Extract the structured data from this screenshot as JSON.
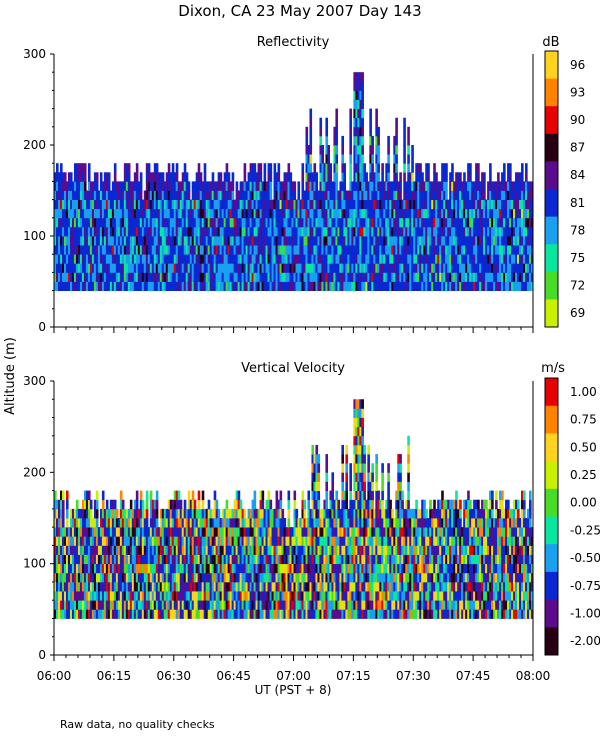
{
  "figure": {
    "title": "Dixon, CA 23 May 2007  Day 143",
    "ylabel": "Altitude (m)",
    "xlabel": "UT  (PST + 8)",
    "xticks": [
      "06:00",
      "06:15",
      "06:30",
      "06:45",
      "07:00",
      "07:15",
      "07:30",
      "07:45",
      "08:00"
    ],
    "footnote": "Raw data, no quality checks"
  },
  "chart_data": [
    {
      "type": "heatmap",
      "title": "Reflectivity",
      "colorbar_unit": "dB",
      "colorbar_ticks": [
        "96",
        "93",
        "90",
        "87",
        "84",
        "81",
        "78",
        "75",
        "72",
        "69"
      ],
      "colorbar_colors": [
        "#ffd21e",
        "#ff8200",
        "#e60000",
        "#280014",
        "#5a0c8c",
        "#0a28d2",
        "#19a0f0",
        "#0ae6a0",
        "#46dc28",
        "#c8f000"
      ],
      "xlim": [
        "06:00",
        "08:00"
      ],
      "ylim": [
        0,
        300
      ],
      "yticks": [
        "300",
        "200",
        "100",
        "0"
      ],
      "data_bottom_m": 40,
      "typical_top_m": [
        160,
        200
      ],
      "max_top_m": 280,
      "max_top_time": "07:16"
    },
    {
      "type": "heatmap",
      "title": "Vertical Velocity",
      "colorbar_unit": "m/s",
      "colorbar_ticks": [
        "1.00",
        "0.75",
        "0.50",
        "0.25",
        "0.00",
        "-0.25",
        "-0.50",
        "-0.75",
        "-1.00",
        "-2.00"
      ],
      "colorbar_colors": [
        "#e60000",
        "#ff8200",
        "#ffd21e",
        "#c8f000",
        "#46dc28",
        "#0ae6a0",
        "#19a0f0",
        "#0a28d2",
        "#5a0c8c",
        "#280014"
      ],
      "xlim": [
        "06:00",
        "08:00"
      ],
      "ylim": [
        0,
        300
      ],
      "yticks": [
        "300",
        "200",
        "100",
        "0"
      ],
      "data_bottom_m": 40,
      "typical_top_m": [
        160,
        200
      ],
      "max_top_m": 280,
      "max_top_time": "07:16"
    }
  ]
}
